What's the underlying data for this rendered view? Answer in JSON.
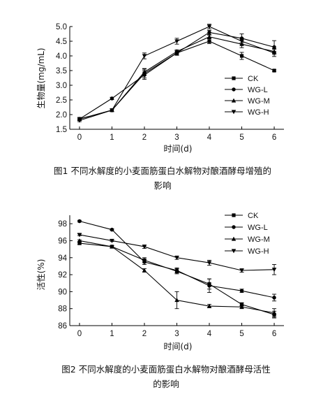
{
  "chart_data": [
    {
      "type": "line",
      "title": "",
      "xlabel": "时间(d)",
      "ylabel": "生物量(mg/mL)",
      "x": [
        0,
        1,
        2,
        3,
        4,
        5,
        6
      ],
      "xlim": [
        -0.3,
        6.3
      ],
      "ylim": [
        1.5,
        5.0
      ],
      "yticks": [
        1.5,
        2.0,
        2.5,
        3.0,
        3.5,
        4.0,
        4.5,
        5.0
      ],
      "ytick_labels": [
        "1.5",
        "2.0",
        "2.5",
        "3.0",
        "3.5",
        "4.0",
        "4.5",
        "5.0"
      ],
      "xtick_labels": [
        "0",
        "1",
        "2",
        "3",
        "4",
        "5",
        "6"
      ],
      "legend": "right",
      "series": [
        {
          "name": "CK",
          "marker": "square",
          "values": [
            1.85,
            2.15,
            3.4,
            4.1,
            4.5,
            4.0,
            3.5
          ],
          "err": [
            0.05,
            0.04,
            0.15,
            0.06,
            0.08,
            0.12,
            0.03
          ]
        },
        {
          "name": "WG-L",
          "marker": "circle",
          "values": [
            1.85,
            2.55,
            3.35,
            4.1,
            4.8,
            4.6,
            4.3
          ],
          "err": [
            0.05,
            0.04,
            0.15,
            0.08,
            0.07,
            0.15,
            0.22
          ]
        },
        {
          "name": "WG-M",
          "marker": "triangle-up",
          "values": [
            1.85,
            2.15,
            3.45,
            4.15,
            4.65,
            4.4,
            4.15
          ],
          "err": [
            0.05,
            0.04,
            0.12,
            0.06,
            0.06,
            0.12,
            0.1
          ]
        },
        {
          "name": "WG-H",
          "marker": "triangle-down",
          "values": [
            1.8,
            2.15,
            4.0,
            4.5,
            5.0,
            4.5,
            4.1
          ],
          "err": [
            0.04,
            0.04,
            0.1,
            0.1,
            0.08,
            0.1,
            0.12
          ]
        }
      ],
      "caption": "图1   不同水解度的小麦面筋蛋白水解物对酿酒酵母增殖的影响"
    },
    {
      "type": "line",
      "title": "",
      "xlabel": "时间(d)",
      "ylabel": "活性(%)",
      "x": [
        0,
        1,
        2,
        3,
        4,
        5,
        6
      ],
      "xlim": [
        -0.3,
        6.3
      ],
      "ylim": [
        86,
        99
      ],
      "yticks": [
        86,
        88,
        90,
        92,
        94,
        96,
        98
      ],
      "ytick_labels": [
        "86",
        "88",
        "90",
        "92",
        "94",
        "96",
        "98"
      ],
      "xtick_labels": [
        "0",
        "1",
        "2",
        "3",
        "4",
        "5",
        "6"
      ],
      "legend": "top-right",
      "series": [
        {
          "name": "CK",
          "marker": "square",
          "values": [
            95.7,
            95.3,
            93.7,
            92.4,
            90.9,
            88.5,
            87.3
          ],
          "err": [
            0.15,
            0.15,
            0.3,
            0.3,
            0.6,
            0.2,
            0.4
          ]
        },
        {
          "name": "WG-L",
          "marker": "circle",
          "values": [
            98.3,
            97.3,
            93.5,
            92.5,
            90.7,
            90.1,
            89.3
          ],
          "err": [
            0.1,
            0.1,
            0.3,
            0.3,
            0.8,
            0.2,
            0.4
          ]
        },
        {
          "name": "WG-M",
          "marker": "triangle-up",
          "values": [
            96.0,
            95.3,
            92.5,
            89.0,
            88.3,
            88.2,
            87.5
          ],
          "err": [
            0.1,
            0.1,
            0.2,
            1.0,
            0.2,
            0.2,
            0.5
          ]
        },
        {
          "name": "WG-H",
          "marker": "triangle-down",
          "values": [
            96.7,
            96.0,
            95.3,
            94.0,
            93.4,
            92.5,
            92.6
          ],
          "err": [
            0.1,
            0.1,
            0.2,
            0.2,
            0.3,
            0.2,
            0.6
          ]
        }
      ],
      "caption": "图2   不同水解度的小麦面筋蛋白水解物对酿酒酵母活性的影响"
    }
  ]
}
